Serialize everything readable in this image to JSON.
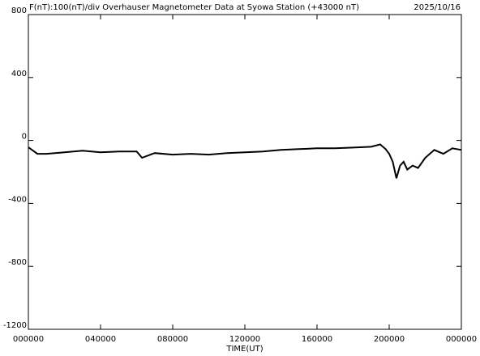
{
  "chart_data": {
    "type": "line",
    "title": "F(nT):100(nT)/div  Overhauser Magnetometer Data at Syowa Station (+43000 nT)",
    "date": "2025/10/16",
    "x_label": "TIME(UT)",
    "x": [
      0,
      0.5,
      1,
      2,
      3,
      4,
      5,
      6,
      6.3,
      7,
      8,
      9,
      10,
      11,
      12,
      13,
      14,
      15,
      16,
      17,
      18,
      19,
      19.5,
      19.8,
      20,
      20.2,
      20.4,
      20.6,
      20.8,
      21,
      21.3,
      21.6,
      22,
      22.5,
      23,
      23.5,
      24
    ],
    "series": [
      {
        "name": "F",
        "color": "#000000",
        "values": [
          -43,
          -85,
          -85,
          -75,
          -65,
          -75,
          -70,
          -70,
          -110,
          -80,
          -90,
          -85,
          -90,
          -80,
          -75,
          -70,
          -60,
          -55,
          -50,
          -50,
          -45,
          -40,
          -25,
          -55,
          -85,
          -135,
          -240,
          -160,
          -135,
          -185,
          -160,
          -175,
          -110,
          -60,
          -85,
          -50,
          -60
        ]
      }
    ],
    "xlim": [
      0,
      24
    ],
    "xticks": [
      {
        "value": 0,
        "label": "000000"
      },
      {
        "value": 4,
        "label": "040000"
      },
      {
        "value": 8,
        "label": "080000"
      },
      {
        "value": 12,
        "label": "120000"
      },
      {
        "value": 16,
        "label": "160000"
      },
      {
        "value": 20,
        "label": "200000"
      },
      {
        "value": 24,
        "label": "000000"
      }
    ],
    "ylim": [
      -1200,
      800
    ],
    "yticks": [
      -1200,
      -800,
      -400,
      0,
      400,
      800
    ]
  }
}
